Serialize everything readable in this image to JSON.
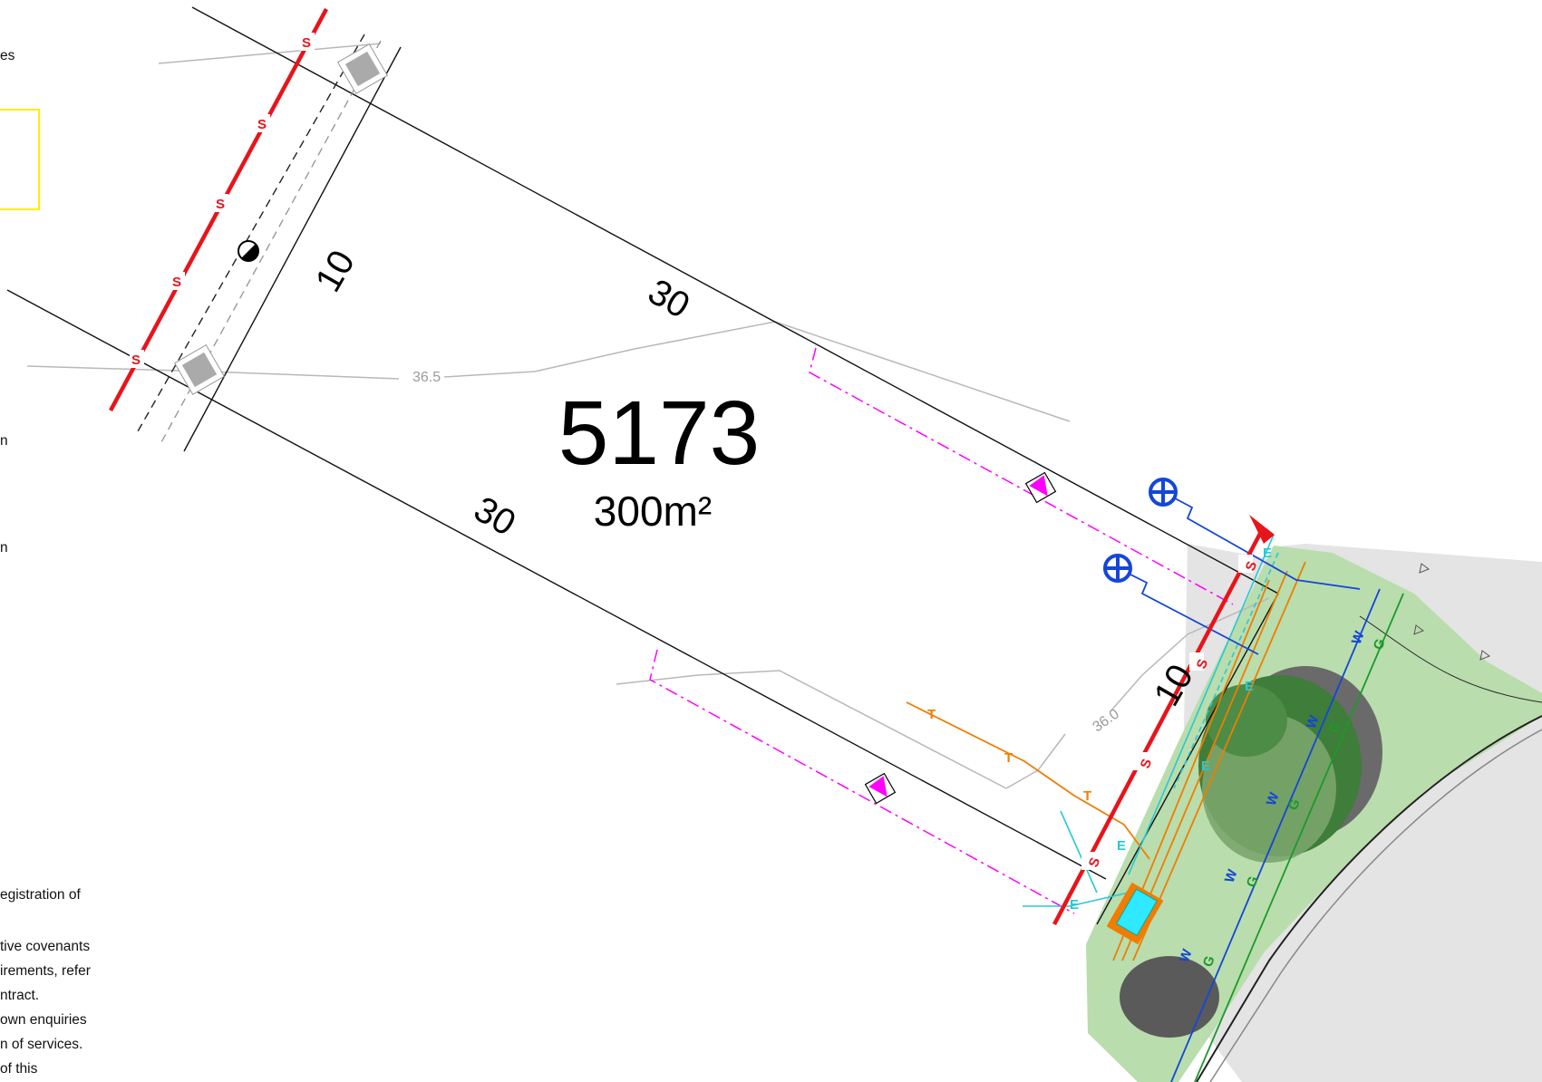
{
  "lot": {
    "number": "5173",
    "area": "300m²",
    "dimensions": {
      "top": "30",
      "bottom": "30",
      "rear": "10",
      "front": "10"
    }
  },
  "contours": [
    "36.5",
    "36.0"
  ],
  "service_letters": {
    "sewer": "S",
    "water": "W",
    "gas": "G",
    "telecom": "T",
    "electric": "E"
  },
  "left_notes": [
    "es",
    "n",
    "n",
    "egistration of",
    "tive covenants",
    "irements, refer",
    "ntract.",
    "own enquiries",
    "n of services.",
    "of this"
  ],
  "colors": {
    "sewer": "#e8141b",
    "water": "#1446d8",
    "gas": "#1a9a2a",
    "telecom": "#f07d00",
    "electric": "#27c9d4",
    "easement": "#ff00ff",
    "verge": "#b9ddad",
    "road": "#e4e4e4",
    "tree": "#3f7d3a",
    "callout_box": "#ffee00"
  }
}
